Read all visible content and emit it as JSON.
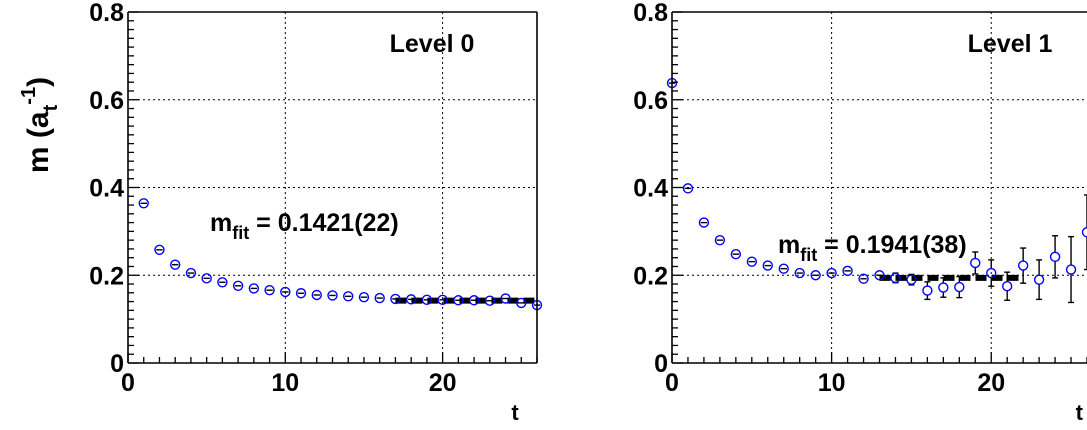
{
  "chart_data": [
    {
      "type": "scatter",
      "title": "Level 0",
      "xlabel": "t",
      "ylabel": "m (a_t^-1)",
      "xlim": [
        0,
        26
      ],
      "ylim": [
        0,
        0.8
      ],
      "xticks": [
        "0",
        "10",
        "20"
      ],
      "yticks": [
        "0",
        "0.2",
        "0.4",
        "0.6",
        "0.8"
      ],
      "grid": true,
      "annotation": {
        "main": "m",
        "sub": "fit",
        "rest": " = 0.1421(22)"
      },
      "marker_color": "#0000ff",
      "fit_color": "#000000",
      "fit": {
        "t_range": [
          17,
          26
        ],
        "value": 0.1421
      },
      "series": [
        {
          "x": [
            1,
            2,
            3,
            4,
            5,
            6,
            7,
            8,
            9,
            10,
            11,
            12,
            13,
            14,
            15,
            16,
            17,
            18,
            19,
            20,
            21,
            22,
            23,
            24,
            25,
            26
          ],
          "y": [
            0.364,
            0.258,
            0.224,
            0.205,
            0.193,
            0.184,
            0.176,
            0.17,
            0.166,
            0.162,
            0.159,
            0.155,
            0.154,
            0.152,
            0.15,
            0.148,
            0.146,
            0.145,
            0.144,
            0.144,
            0.143,
            0.143,
            0.142,
            0.147,
            0.137,
            0.132
          ],
          "err": [
            0.002,
            0.002,
            0.002,
            0.002,
            0.002,
            0.002,
            0.002,
            0.002,
            0.002,
            0.002,
            0.002,
            0.002,
            0.002,
            0.002,
            0.002,
            0.002,
            0.003,
            0.003,
            0.004,
            0.004,
            0.005,
            0.005,
            0.006,
            0.007,
            0.008,
            0.009
          ]
        }
      ]
    },
    {
      "type": "scatter",
      "title": "Level 1",
      "xlabel": "t",
      "ylabel": "",
      "xlim": [
        0,
        26
      ],
      "ylim": [
        0,
        0.8
      ],
      "xticks": [
        "0",
        "10",
        "20"
      ],
      "yticks": [
        "0",
        "0.2",
        "0.4",
        "0.6",
        "0.8"
      ],
      "grid": true,
      "annotation": {
        "main": "m",
        "sub": "fit",
        "rest": " = 0.1941(38)"
      },
      "marker_color": "#0000ff",
      "fit_color": "#000000",
      "fit": {
        "t_range": [
          13,
          22
        ],
        "value": 0.1941
      },
      "series": [
        {
          "x": [
            0,
            1,
            2,
            3,
            4,
            5,
            6,
            7,
            8,
            9,
            10,
            11,
            12,
            13,
            14,
            15,
            16,
            17,
            18,
            19,
            20,
            21,
            22,
            23,
            24,
            25,
            26
          ],
          "y": [
            0.638,
            0.398,
            0.32,
            0.28,
            0.248,
            0.231,
            0.222,
            0.215,
            0.205,
            0.2,
            0.205,
            0.21,
            0.192,
            0.2,
            0.194,
            0.19,
            0.165,
            0.172,
            0.173,
            0.228,
            0.205,
            0.175,
            0.222,
            0.19,
            0.242,
            0.213,
            0.298
          ],
          "err": [
            0.003,
            0.003,
            0.003,
            0.003,
            0.004,
            0.004,
            0.005,
            0.006,
            0.006,
            0.007,
            0.008,
            0.009,
            0.01,
            0.01,
            0.011,
            0.012,
            0.02,
            0.022,
            0.024,
            0.025,
            0.03,
            0.032,
            0.04,
            0.045,
            0.048,
            0.075,
            0.085
          ]
        }
      ]
    }
  ]
}
